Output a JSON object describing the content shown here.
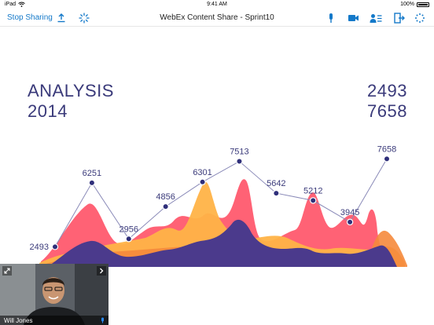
{
  "status_bar": {
    "device": "iPad",
    "time": "9:41 AM",
    "battery": "100%"
  },
  "toolbar": {
    "stop_sharing_label": "Stop Sharing",
    "title": "WebEx Content Share - Sprint10",
    "icons": [
      "share-upload-icon",
      "loading-icon",
      "microphone-icon",
      "video-camera-icon",
      "participants-icon",
      "leave-icon",
      "more-icon"
    ],
    "accent_color": "#1479c9"
  },
  "slide": {
    "title_line1": "ANALYSIS",
    "title_line2": "2014",
    "number_top": "2493",
    "number_bottom": "7658",
    "text_color": "#3a3a7a"
  },
  "chart_data": {
    "type": "line",
    "x": [
      1,
      2,
      3,
      4,
      5,
      6,
      7,
      8,
      9,
      10
    ],
    "series": [
      {
        "values": [
          2493,
          6251,
          2956,
          4856,
          6301,
          7513,
          5642,
          5212,
          3945,
          7658
        ]
      }
    ],
    "data_labels": [
      "2493",
      "6251",
      "2956",
      "4856",
      "6301",
      "7513",
      "5642",
      "5212",
      "3945",
      "7658"
    ],
    "background_area_colors": [
      "#ff5a6e",
      "#ffb347",
      "#f58a3c",
      "#4b3a8c"
    ],
    "line_color": "#8a8ab8",
    "marker_color": "#2f2f7a"
  },
  "video": {
    "participant_name": "Will Jones"
  }
}
